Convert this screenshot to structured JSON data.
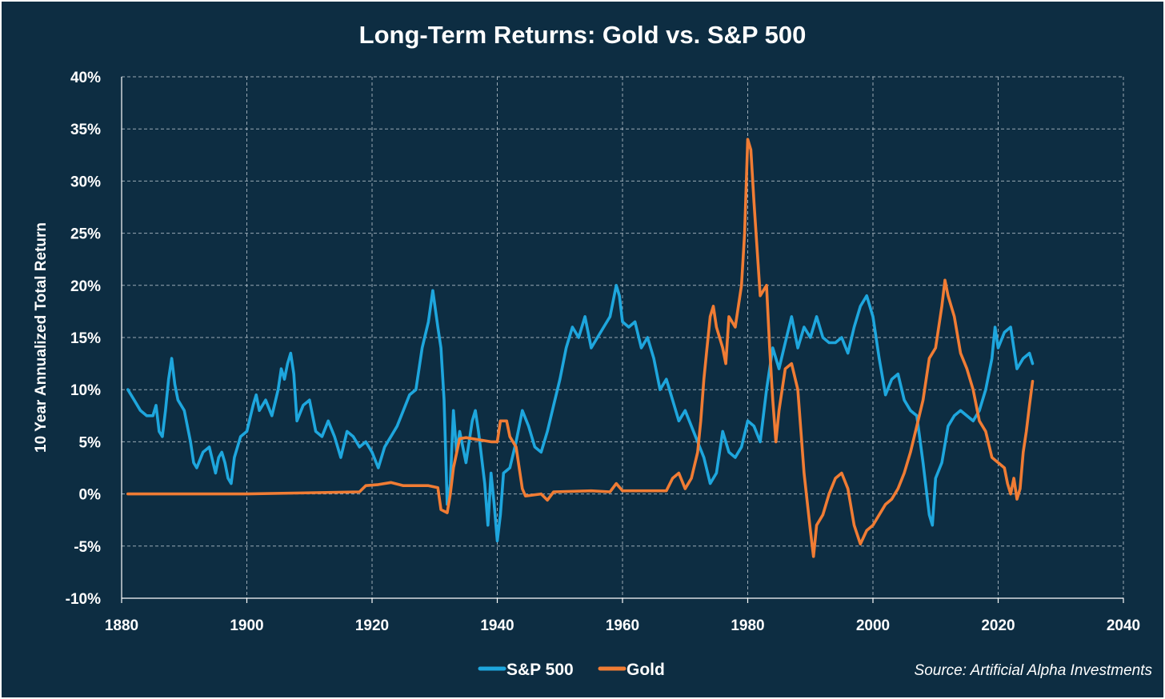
{
  "chart_data": {
    "type": "line",
    "title": "Long-Term Returns: Gold vs. S&P 500",
    "xlabel": "",
    "ylabel": "10 Year Annualized Total Return",
    "xlim": [
      1880,
      2040
    ],
    "ylim": [
      -10,
      40
    ],
    "x_ticks": [
      1880,
      1900,
      1920,
      1940,
      1960,
      1980,
      2000,
      2020,
      2040
    ],
    "x_tick_labels": [
      "1880",
      "1900",
      "1920",
      "1940",
      "1960",
      "1980",
      "2000",
      "2020",
      "2040"
    ],
    "y_ticks": [
      -10,
      -5,
      0,
      5,
      10,
      15,
      20,
      25,
      30,
      35,
      40
    ],
    "y_tick_labels": [
      "-10%",
      "-5%",
      "0%",
      "5%",
      "10%",
      "15%",
      "20%",
      "25%",
      "30%",
      "35%",
      "40%"
    ],
    "grid": true,
    "legend_position": "bottom-center",
    "source_note": "Source: Artificial Alpha Investments",
    "background_color": "#0d2d42",
    "series": [
      {
        "name": "S&P 500",
        "color": "#1ea6dd",
        "points": [
          [
            1881.0,
            10.0
          ],
          [
            1882.0,
            9.0
          ],
          [
            1883.0,
            8.0
          ],
          [
            1884.0,
            7.5
          ],
          [
            1885.0,
            7.5
          ],
          [
            1885.5,
            8.5
          ],
          [
            1886.0,
            6.0
          ],
          [
            1886.5,
            5.5
          ],
          [
            1887.0,
            8.0
          ],
          [
            1887.5,
            11.0
          ],
          [
            1888.0,
            13.0
          ],
          [
            1888.5,
            10.5
          ],
          [
            1889.0,
            9.0
          ],
          [
            1890.0,
            8.0
          ],
          [
            1891.0,
            5.0
          ],
          [
            1891.5,
            3.0
          ],
          [
            1892.0,
            2.5
          ],
          [
            1893.0,
            4.0
          ],
          [
            1894.0,
            4.5
          ],
          [
            1895.0,
            2.0
          ],
          [
            1895.5,
            3.5
          ],
          [
            1896.0,
            4.0
          ],
          [
            1896.5,
            3.0
          ],
          [
            1897.0,
            1.5
          ],
          [
            1897.5,
            1.0
          ],
          [
            1898.0,
            3.5
          ],
          [
            1899.0,
            5.5
          ],
          [
            1900.0,
            6.0
          ],
          [
            1901.0,
            8.5
          ],
          [
            1901.5,
            9.5
          ],
          [
            1902.0,
            8.0
          ],
          [
            1903.0,
            9.0
          ],
          [
            1904.0,
            7.5
          ],
          [
            1905.0,
            10.0
          ],
          [
            1905.5,
            12.0
          ],
          [
            1906.0,
            11.0
          ],
          [
            1906.5,
            12.5
          ],
          [
            1907.0,
            13.5
          ],
          [
            1907.5,
            11.5
          ],
          [
            1908.0,
            7.0
          ],
          [
            1909.0,
            8.5
          ],
          [
            1910.0,
            9.0
          ],
          [
            1911.0,
            6.0
          ],
          [
            1912.0,
            5.5
          ],
          [
            1913.0,
            7.0
          ],
          [
            1914.0,
            5.5
          ],
          [
            1915.0,
            3.5
          ],
          [
            1916.0,
            6.0
          ],
          [
            1917.0,
            5.5
          ],
          [
            1918.0,
            4.5
          ],
          [
            1919.0,
            5.0
          ],
          [
            1920.0,
            4.0
          ],
          [
            1921.0,
            2.5
          ],
          [
            1922.0,
            4.5
          ],
          [
            1923.0,
            5.5
          ],
          [
            1924.0,
            6.5
          ],
          [
            1925.0,
            8.0
          ],
          [
            1926.0,
            9.5
          ],
          [
            1927.0,
            10.0
          ],
          [
            1928.0,
            14.0
          ],
          [
            1929.0,
            16.5
          ],
          [
            1929.7,
            19.5
          ],
          [
            1930.5,
            16.0
          ],
          [
            1931.0,
            14.0
          ],
          [
            1931.5,
            9.0
          ],
          [
            1932.0,
            -1.0
          ],
          [
            1932.5,
            1.0
          ],
          [
            1933.0,
            8.0
          ],
          [
            1933.5,
            4.0
          ],
          [
            1934.0,
            6.0
          ],
          [
            1935.0,
            3.0
          ],
          [
            1936.0,
            7.0
          ],
          [
            1936.5,
            8.0
          ],
          [
            1937.0,
            6.0
          ],
          [
            1938.0,
            1.0
          ],
          [
            1938.5,
            -3.0
          ],
          [
            1939.0,
            2.0
          ],
          [
            1939.5,
            -1.0
          ],
          [
            1940.0,
            -4.5
          ],
          [
            1940.5,
            -2.0
          ],
          [
            1941.0,
            2.0
          ],
          [
            1942.0,
            2.5
          ],
          [
            1943.0,
            5.0
          ],
          [
            1944.0,
            8.0
          ],
          [
            1945.0,
            6.5
          ],
          [
            1946.0,
            4.5
          ],
          [
            1947.0,
            4.0
          ],
          [
            1948.0,
            6.0
          ],
          [
            1949.0,
            8.5
          ],
          [
            1950.0,
            11.0
          ],
          [
            1951.0,
            14.0
          ],
          [
            1952.0,
            16.0
          ],
          [
            1953.0,
            15.0
          ],
          [
            1954.0,
            17.0
          ],
          [
            1955.0,
            14.0
          ],
          [
            1956.0,
            15.0
          ],
          [
            1957.0,
            16.0
          ],
          [
            1958.0,
            17.0
          ],
          [
            1959.0,
            20.0
          ],
          [
            1959.5,
            19.0
          ],
          [
            1960.0,
            16.5
          ],
          [
            1961.0,
            16.0
          ],
          [
            1962.0,
            16.5
          ],
          [
            1963.0,
            14.0
          ],
          [
            1964.0,
            15.0
          ],
          [
            1965.0,
            13.0
          ],
          [
            1966.0,
            10.0
          ],
          [
            1967.0,
            11.0
          ],
          [
            1968.0,
            9.0
          ],
          [
            1969.0,
            7.0
          ],
          [
            1970.0,
            8.0
          ],
          [
            1971.0,
            6.5
          ],
          [
            1972.0,
            5.0
          ],
          [
            1973.0,
            3.5
          ],
          [
            1974.0,
            1.0
          ],
          [
            1975.0,
            2.0
          ],
          [
            1976.0,
            6.0
          ],
          [
            1977.0,
            4.0
          ],
          [
            1978.0,
            3.5
          ],
          [
            1979.0,
            4.5
          ],
          [
            1980.0,
            7.0
          ],
          [
            1981.0,
            6.5
          ],
          [
            1982.0,
            5.0
          ],
          [
            1983.0,
            10.0
          ],
          [
            1984.0,
            14.0
          ],
          [
            1985.0,
            12.0
          ],
          [
            1986.0,
            14.5
          ],
          [
            1987.0,
            17.0
          ],
          [
            1988.0,
            14.0
          ],
          [
            1989.0,
            16.0
          ],
          [
            1990.0,
            15.0
          ],
          [
            1991.0,
            17.0
          ],
          [
            1992.0,
            15.0
          ],
          [
            1993.0,
            14.5
          ],
          [
            1994.0,
            14.5
          ],
          [
            1995.0,
            15.0
          ],
          [
            1996.0,
            13.5
          ],
          [
            1997.0,
            16.0
          ],
          [
            1998.0,
            18.0
          ],
          [
            1999.0,
            19.0
          ],
          [
            2000.0,
            17.0
          ],
          [
            2001.0,
            13.0
          ],
          [
            2002.0,
            9.5
          ],
          [
            2003.0,
            11.0
          ],
          [
            2004.0,
            11.5
          ],
          [
            2005.0,
            9.0
          ],
          [
            2006.0,
            8.0
          ],
          [
            2007.0,
            7.5
          ],
          [
            2008.0,
            3.0
          ],
          [
            2009.0,
            -2.0
          ],
          [
            2009.5,
            -3.0
          ],
          [
            2010.0,
            1.5
          ],
          [
            2011.0,
            3.0
          ],
          [
            2012.0,
            6.5
          ],
          [
            2013.0,
            7.5
          ],
          [
            2014.0,
            8.0
          ],
          [
            2015.0,
            7.5
          ],
          [
            2016.0,
            7.0
          ],
          [
            2017.0,
            8.0
          ],
          [
            2018.0,
            10.0
          ],
          [
            2019.0,
            13.0
          ],
          [
            2019.5,
            16.0
          ],
          [
            2020.0,
            14.0
          ],
          [
            2021.0,
            15.5
          ],
          [
            2022.0,
            16.0
          ],
          [
            2023.0,
            12.0
          ],
          [
            2024.0,
            13.0
          ],
          [
            2025.0,
            13.5
          ],
          [
            2025.5,
            12.5
          ]
        ]
      },
      {
        "name": "Gold",
        "color": "#f07c34",
        "points": [
          [
            1881.0,
            0.0
          ],
          [
            1900.0,
            0.0
          ],
          [
            1918.0,
            0.2
          ],
          [
            1919.0,
            0.8
          ],
          [
            1921.0,
            0.9
          ],
          [
            1923.0,
            1.1
          ],
          [
            1925.0,
            0.8
          ],
          [
            1929.0,
            0.8
          ],
          [
            1930.5,
            0.6
          ],
          [
            1931.0,
            -1.5
          ],
          [
            1932.0,
            -1.8
          ],
          [
            1932.5,
            0.0
          ],
          [
            1933.0,
            2.5
          ],
          [
            1934.0,
            5.3
          ],
          [
            1935.0,
            5.4
          ],
          [
            1939.0,
            5.0
          ],
          [
            1940.0,
            5.0
          ],
          [
            1940.5,
            7.0
          ],
          [
            1941.5,
            7.0
          ],
          [
            1942.0,
            5.5
          ],
          [
            1943.0,
            4.5
          ],
          [
            1944.0,
            0.5
          ],
          [
            1944.5,
            -0.2
          ],
          [
            1947.0,
            0.0
          ],
          [
            1948.0,
            -0.6
          ],
          [
            1949.0,
            0.2
          ],
          [
            1955.0,
            0.3
          ],
          [
            1958.0,
            0.2
          ],
          [
            1959.0,
            1.0
          ],
          [
            1960.0,
            0.3
          ],
          [
            1967.0,
            0.3
          ],
          [
            1968.0,
            1.5
          ],
          [
            1969.0,
            2.0
          ],
          [
            1970.0,
            0.5
          ],
          [
            1971.0,
            1.5
          ],
          [
            1972.0,
            4.0
          ],
          [
            1972.5,
            7.0
          ],
          [
            1973.0,
            11.0
          ],
          [
            1973.5,
            14.0
          ],
          [
            1974.0,
            17.0
          ],
          [
            1974.5,
            18.0
          ],
          [
            1975.0,
            16.0
          ],
          [
            1976.0,
            14.0
          ],
          [
            1976.5,
            12.5
          ],
          [
            1977.0,
            17.0
          ],
          [
            1978.0,
            16.0
          ],
          [
            1979.0,
            20.0
          ],
          [
            1979.5,
            25.0
          ],
          [
            1980.0,
            34.0
          ],
          [
            1980.5,
            33.0
          ],
          [
            1981.0,
            28.0
          ],
          [
            1982.0,
            19.0
          ],
          [
            1983.0,
            20.0
          ],
          [
            1983.5,
            14.0
          ],
          [
            1984.0,
            9.0
          ],
          [
            1984.5,
            5.0
          ],
          [
            1985.0,
            8.0
          ],
          [
            1986.0,
            12.0
          ],
          [
            1987.0,
            12.5
          ],
          [
            1988.0,
            10.0
          ],
          [
            1989.0,
            2.0
          ],
          [
            1990.0,
            -3.5
          ],
          [
            1990.5,
            -6.0
          ],
          [
            1991.0,
            -3.0
          ],
          [
            1992.0,
            -2.0
          ],
          [
            1993.0,
            0.0
          ],
          [
            1994.0,
            1.5
          ],
          [
            1995.0,
            2.0
          ],
          [
            1996.0,
            0.5
          ],
          [
            1997.0,
            -3.0
          ],
          [
            1998.0,
            -4.8
          ],
          [
            1999.0,
            -3.5
          ],
          [
            2000.0,
            -3.0
          ],
          [
            2001.0,
            -2.0
          ],
          [
            2002.0,
            -1.0
          ],
          [
            2003.0,
            -0.5
          ],
          [
            2004.0,
            0.5
          ],
          [
            2005.0,
            2.0
          ],
          [
            2006.0,
            4.0
          ],
          [
            2007.0,
            6.5
          ],
          [
            2008.0,
            9.0
          ],
          [
            2009.0,
            13.0
          ],
          [
            2010.0,
            14.0
          ],
          [
            2011.0,
            18.0
          ],
          [
            2011.5,
            20.5
          ],
          [
            2012.0,
            19.0
          ],
          [
            2013.0,
            17.0
          ],
          [
            2014.0,
            13.5
          ],
          [
            2015.0,
            12.0
          ],
          [
            2016.0,
            10.0
          ],
          [
            2017.0,
            7.0
          ],
          [
            2018.0,
            6.0
          ],
          [
            2019.0,
            3.5
          ],
          [
            2020.0,
            3.0
          ],
          [
            2021.0,
            2.5
          ],
          [
            2021.5,
            1.0
          ],
          [
            2022.0,
            0.0
          ],
          [
            2022.5,
            1.5
          ],
          [
            2023.0,
            -0.5
          ],
          [
            2023.5,
            0.5
          ],
          [
            2024.0,
            4.0
          ],
          [
            2024.5,
            6.0
          ],
          [
            2025.0,
            8.5
          ],
          [
            2025.5,
            10.8
          ]
        ]
      }
    ]
  }
}
